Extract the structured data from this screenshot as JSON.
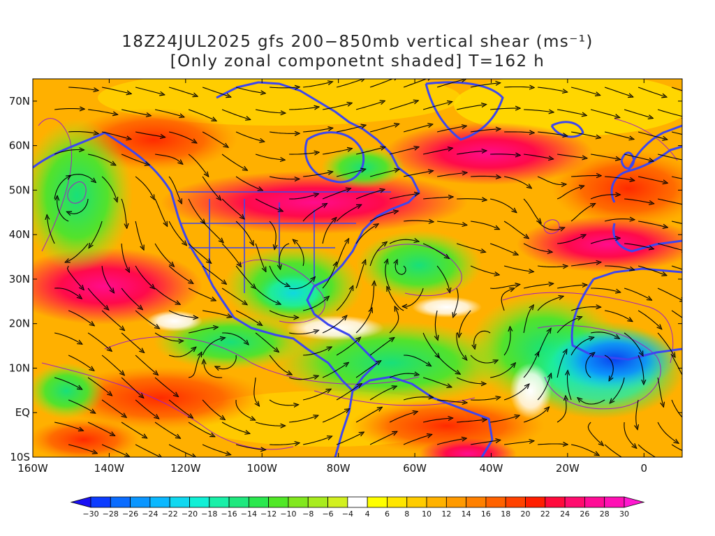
{
  "title": {
    "line1": "18Z24JUL2025 gfs 200−850mb vertical shear (ms⁻¹)",
    "line2": "[Only zonal componetnt shaded] T=162 h"
  },
  "map": {
    "lon_range": [
      -160,
      10
    ],
    "lat_range": [
      -10,
      75
    ],
    "lon_ticks": [
      {
        "value": -160,
        "label": "160W"
      },
      {
        "value": -140,
        "label": "140W"
      },
      {
        "value": -120,
        "label": "120W"
      },
      {
        "value": -100,
        "label": "100W"
      },
      {
        "value": -80,
        "label": "80W"
      },
      {
        "value": -60,
        "label": "60W"
      },
      {
        "value": -40,
        "label": "40W"
      },
      {
        "value": -20,
        "label": "20W"
      },
      {
        "value": 0,
        "label": "0"
      }
    ],
    "lat_ticks": [
      {
        "value": -10,
        "label": "10S"
      },
      {
        "value": 0,
        "label": "EQ"
      },
      {
        "value": 10,
        "label": "10N"
      },
      {
        "value": 20,
        "label": "20N"
      },
      {
        "value": 30,
        "label": "30N"
      },
      {
        "value": 40,
        "label": "40N"
      },
      {
        "value": 50,
        "label": "50N"
      },
      {
        "value": 60,
        "label": "60N"
      },
      {
        "value": 70,
        "label": "70N"
      }
    ]
  },
  "colorbar": {
    "labels": [
      "−30",
      "−28",
      "−26",
      "−24",
      "−22",
      "−20",
      "−18",
      "−16",
      "−14",
      "−12",
      "−10",
      "−8",
      "−6",
      "−4",
      "4",
      "6",
      "8",
      "10",
      "12",
      "14",
      "16",
      "18",
      "20",
      "22",
      "24",
      "26",
      "28",
      "30"
    ],
    "colors": [
      "#1a10f5",
      "#0c3cff",
      "#0a6cff",
      "#0a96ff",
      "#0ab8ff",
      "#10d8f0",
      "#10f0d6",
      "#18f0a8",
      "#1ee87e",
      "#2ae84e",
      "#50e826",
      "#82e81e",
      "#a8ec1e",
      "#d2f020",
      "#ffffff",
      "#ffff00",
      "#ffe600",
      "#ffcc00",
      "#ffb200",
      "#ff9a00",
      "#ff8000",
      "#ff6200",
      "#ff4200",
      "#ff1e00",
      "#ff0a3c",
      "#ff0c6e",
      "#ff0c96",
      "#ff10b4",
      "#ff18d0"
    ]
  },
  "colors": {
    "coastline": "#3c46f0",
    "contour": "#a020c0",
    "streamline": "#000000"
  }
}
